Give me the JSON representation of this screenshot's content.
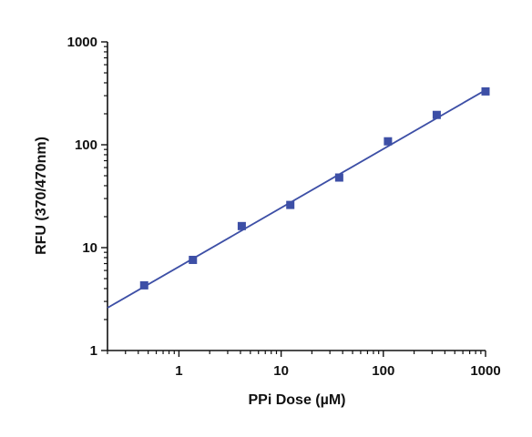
{
  "chart_data": {
    "type": "scatter",
    "xlabel": "PPi Dose (µM)",
    "ylabel": "RFU (370/470nm)",
    "x_scale": "log",
    "y_scale": "log",
    "xlim": [
      0.2,
      1000
    ],
    "ylim": [
      1,
      1000
    ],
    "x_ticks": [
      1,
      10,
      100,
      1000
    ],
    "x_tick_labels": [
      "1",
      "10",
      "100",
      "1000"
    ],
    "y_ticks": [
      1,
      10,
      100,
      1000
    ],
    "y_tick_labels": [
      "1",
      "10",
      "100",
      "1000"
    ],
    "grid": false,
    "series": [
      {
        "marker": "square",
        "color": "#3d4fa6",
        "x": [
          0.457,
          1.37,
          4.12,
          12.3,
          37.0,
          111,
          333,
          1000
        ],
        "y": [
          4.3,
          7.6,
          16.2,
          26.0,
          48.0,
          108,
          195,
          330
        ]
      }
    ],
    "fit_line": {
      "color": "#3d4fa6",
      "x": [
        0.2,
        1000
      ],
      "y": [
        2.6,
        340
      ]
    }
  }
}
